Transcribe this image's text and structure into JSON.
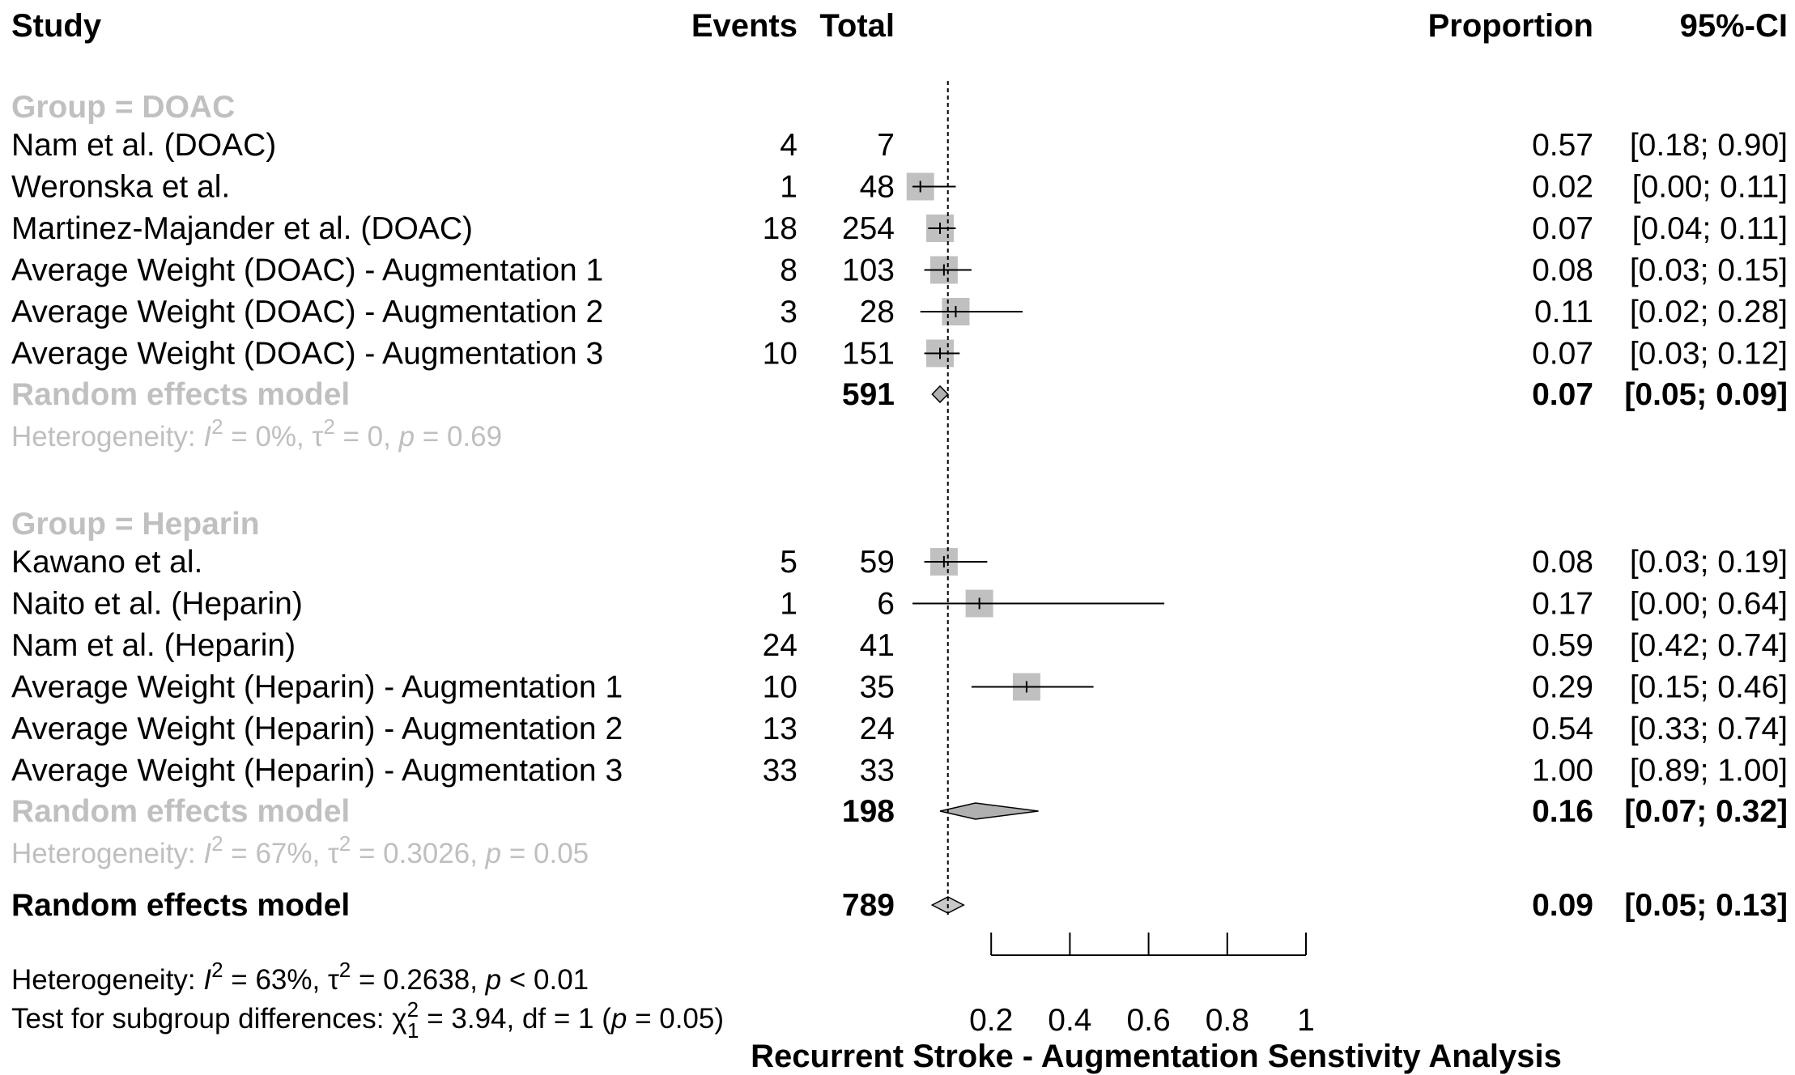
{
  "chart_data": {
    "type": "forest",
    "xlabel": "Recurrent Stroke - Augmentation Senstivity Analysis",
    "xlim": [
      0,
      1
    ],
    "xticks": [
      0.2,
      0.4,
      0.6,
      0.8,
      1
    ],
    "tick_labels": [
      "0.2",
      "0.4",
      "0.6",
      "0.8",
      "1"
    ],
    "headers": {
      "study": "Study",
      "events": "Events",
      "total": "Total",
      "proportion": "Proportion",
      "ci": "95%-CI"
    },
    "groups": [
      {
        "label": "Group = DOAC",
        "studies": [
          {
            "study": "Nam et al. (DOAC)",
            "events": "4",
            "total": "7",
            "prop": 0.57,
            "lo": 0.18,
            "hi": 0.9,
            "prop_text": "0.57",
            "ci_text": "[0.18; 0.90]",
            "weight": 0
          },
          {
            "study": "Weronska et al.",
            "events": "1",
            "total": "48",
            "prop": 0.02,
            "lo": 0.0,
            "hi": 0.11,
            "prop_text": "0.02",
            "ci_text": "[0.00; 0.11]",
            "weight": 0.45
          },
          {
            "study": "Martinez-Majander et al. (DOAC)",
            "events": "18",
            "total": "254",
            "prop": 0.07,
            "lo": 0.04,
            "hi": 0.11,
            "prop_text": "0.07",
            "ci_text": "[0.04; 0.11]",
            "weight": 0.45
          },
          {
            "study": "Average Weight (DOAC) - Augmentation 1",
            "events": "8",
            "total": "103",
            "prop": 0.08,
            "lo": 0.03,
            "hi": 0.15,
            "prop_text": "0.08",
            "ci_text": "[0.03; 0.15]",
            "weight": 0.45
          },
          {
            "study": "Average Weight (DOAC) - Augmentation 2",
            "events": "3",
            "total": "28",
            "prop": 0.11,
            "lo": 0.02,
            "hi": 0.28,
            "prop_text": "0.11",
            "ci_text": "[0.02; 0.28]",
            "weight": 0.45
          },
          {
            "study": "Average Weight (DOAC) - Augmentation 3",
            "events": "10",
            "total": "151",
            "prop": 0.07,
            "lo": 0.03,
            "hi": 0.12,
            "prop_text": "0.07",
            "ci_text": "[0.03; 0.12]",
            "weight": 0.45
          }
        ],
        "summary": {
          "label": "Random effects model",
          "total": "591",
          "prop": 0.07,
          "lo": 0.05,
          "hi": 0.09,
          "prop_text": "0.07",
          "ci_text": "[0.05; 0.09]"
        },
        "heterogeneity": {
          "prefix": "Heterogeneity: ",
          "i2": "I",
          "i2_value": " = 0%, ",
          "tau": "τ",
          "tau_value": " = 0, ",
          "p": "p",
          "p_value": " = 0.69"
        }
      },
      {
        "label": "Group = Heparin",
        "studies": [
          {
            "study": "Kawano et al.",
            "events": "5",
            "total": "59",
            "prop": 0.08,
            "lo": 0.03,
            "hi": 0.19,
            "prop_text": "0.08",
            "ci_text": "[0.03; 0.19]",
            "weight": 0.45
          },
          {
            "study": "Naito et al. (Heparin)",
            "events": "1",
            "total": "6",
            "prop": 0.17,
            "lo": 0.0,
            "hi": 0.64,
            "prop_text": "0.17",
            "ci_text": "[0.00; 0.64]",
            "weight": 0.45
          },
          {
            "study": "Nam et al. (Heparin)",
            "events": "24",
            "total": "41",
            "prop": 0.59,
            "lo": 0.42,
            "hi": 0.74,
            "prop_text": "0.59",
            "ci_text": "[0.42; 0.74]",
            "weight": 0
          },
          {
            "study": "Average Weight (Heparin) - Augmentation 1",
            "events": "10",
            "total": "35",
            "prop": 0.29,
            "lo": 0.15,
            "hi": 0.46,
            "prop_text": "0.29",
            "ci_text": "[0.15; 0.46]",
            "weight": 0.45
          },
          {
            "study": "Average Weight (Heparin) - Augmentation 2",
            "events": "13",
            "total": "24",
            "prop": 0.54,
            "lo": 0.33,
            "hi": 0.74,
            "prop_text": "0.54",
            "ci_text": "[0.33; 0.74]",
            "weight": 0
          },
          {
            "study": "Average Weight (Heparin) - Augmentation 3",
            "events": "33",
            "total": "33",
            "prop": 1.0,
            "lo": 0.89,
            "hi": 1.0,
            "prop_text": "1.00",
            "ci_text": "[0.89; 1.00]",
            "weight": 0
          }
        ],
        "summary": {
          "label": "Random effects model",
          "total": "198",
          "prop": 0.16,
          "lo": 0.07,
          "hi": 0.32,
          "prop_text": "0.16",
          "ci_text": "[0.07; 0.32]"
        },
        "heterogeneity": {
          "prefix": "Heterogeneity: ",
          "i2": "I",
          "i2_value": " = 67%, ",
          "tau": "τ",
          "tau_value": " = 0.3026, ",
          "p": "p",
          "p_value": " = 0.05"
        }
      }
    ],
    "overall": {
      "label": "Random effects model",
      "total": "789",
      "prop": 0.09,
      "lo": 0.05,
      "hi": 0.13,
      "prop_text": "0.09",
      "ci_text": "[0.05; 0.13]",
      "heterogeneity": {
        "prefix": "Heterogeneity: ",
        "i2": "I",
        "i2_value": " = 63%, ",
        "tau": "τ",
        "tau_value": " = 0.2638, ",
        "p": "p",
        "p_value": " < 0.01"
      },
      "subgroup_test": {
        "prefix": "Test for subgroup differences: ",
        "chi": "χ",
        "chi_sub": "1",
        "chi_value": " = 3.94, df = 1 (",
        "p": "p",
        "p_value": " = 0.05)"
      }
    },
    "reference_line": 0.09
  }
}
